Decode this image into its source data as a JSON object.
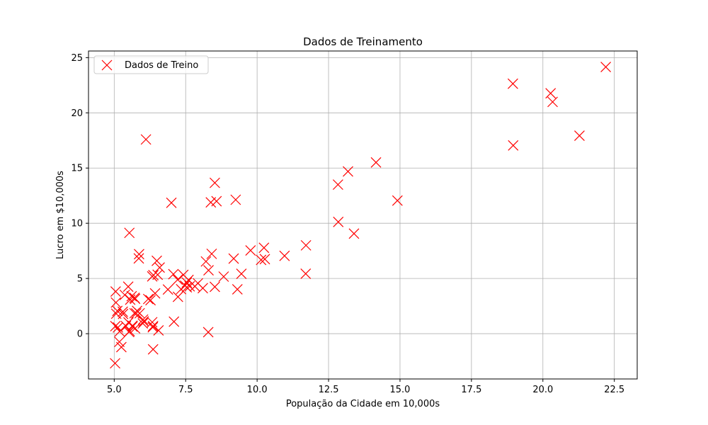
{
  "chart_data": {
    "type": "scatter",
    "title": "Dados de Treinamento",
    "xlabel": "População da Cidade em 10,000s",
    "ylabel": "Lucro em $10,000s",
    "xlim": [
      4.1,
      23.3
    ],
    "ylim": [
      -4.1,
      25.6
    ],
    "xticks": [
      5.0,
      7.5,
      10.0,
      12.5,
      15.0,
      17.5,
      20.0,
      22.5
    ],
    "xtick_labels": [
      "5.0",
      "7.5",
      "10.0",
      "12.5",
      "15.0",
      "17.5",
      "20.0",
      "22.5"
    ],
    "yticks": [
      0,
      5,
      10,
      15,
      20,
      25
    ],
    "ytick_labels": [
      "0",
      "5",
      "10",
      "15",
      "20",
      "25"
    ],
    "grid": true,
    "legend": {
      "position": "top-left",
      "entries": [
        "Dados de Treino"
      ]
    },
    "marker": "x",
    "color": "#ff0000",
    "series": [
      {
        "name": "Dados de Treino",
        "x": [
          6.11,
          5.53,
          8.52,
          7.0,
          5.86,
          8.38,
          7.48,
          8.58,
          6.49,
          5.05,
          5.71,
          14.16,
          5.73,
          8.41,
          5.64,
          5.37,
          6.37,
          5.13,
          6.43,
          7.07,
          6.19,
          20.27,
          5.49,
          6.33,
          5.56,
          18.95,
          12.83,
          10.96,
          13.18,
          22.2,
          5.25,
          6.59,
          9.25,
          5.89,
          8.21,
          7.93,
          8.1,
          5.61,
          12.84,
          6.35,
          5.41,
          6.88,
          11.71,
          5.77,
          7.82,
          7.09,
          5.07,
          5.8,
          11.7,
          5.54,
          7.54,
          5.31,
          7.42,
          7.6,
          6.03,
          6.33,
          6.36,
          6.27,
          5.64,
          9.31,
          9.45,
          8.83,
          5.18,
          21.28,
          14.91,
          18.96,
          7.22,
          8.3,
          10.24,
          5.5,
          20.34,
          10.14,
          7.34,
          6.01,
          7.23,
          5.03,
          6.55,
          7.54,
          5.04,
          10.27,
          5.11,
          5.73,
          5.19,
          6.36,
          9.77,
          6.52,
          8.52,
          9.18,
          6.0,
          5.52,
          5.06,
          5.71,
          7.64,
          5.87,
          5.3,
          8.29,
          13.39
        ],
        "y": [
          17.59,
          9.13,
          13.66,
          11.85,
          6.82,
          11.89,
          4.35,
          12.0,
          6.6,
          3.82,
          3.25,
          15.51,
          3.16,
          7.23,
          0.72,
          3.51,
          5.3,
          0.56,
          3.65,
          5.39,
          3.14,
          21.77,
          4.26,
          5.19,
          3.08,
          22.64,
          13.5,
          7.05,
          14.69,
          24.15,
          -1.22,
          5.99,
          12.13,
          1.85,
          6.54,
          4.56,
          4.12,
          3.39,
          10.12,
          0.58,
          0.68,
          4.0,
          8.0,
          1.84,
          4.29,
          1.09,
          1.81,
          2.06,
          5.43,
          0.23,
          4.63,
          1.79,
          5.33,
          4.87,
          1.11,
          1.04,
          -1.42,
          3.03,
          0.64,
          4.02,
          5.42,
          5.17,
          -0.74,
          17.93,
          12.05,
          17.05,
          4.89,
          5.74,
          7.78,
          1.02,
          20.99,
          6.68,
          4.03,
          1.28,
          3.34,
          -2.68,
          0.3,
          4.2,
          0.68,
          6.75,
          2.06,
          0.48,
          0.2,
          0.68,
          7.54,
          5.34,
          4.24,
          6.8,
          0.93,
          0.15,
          2.82,
          1.85,
          4.29,
          7.2,
          1.99,
          0.14,
          9.06
        ]
      }
    ]
  }
}
